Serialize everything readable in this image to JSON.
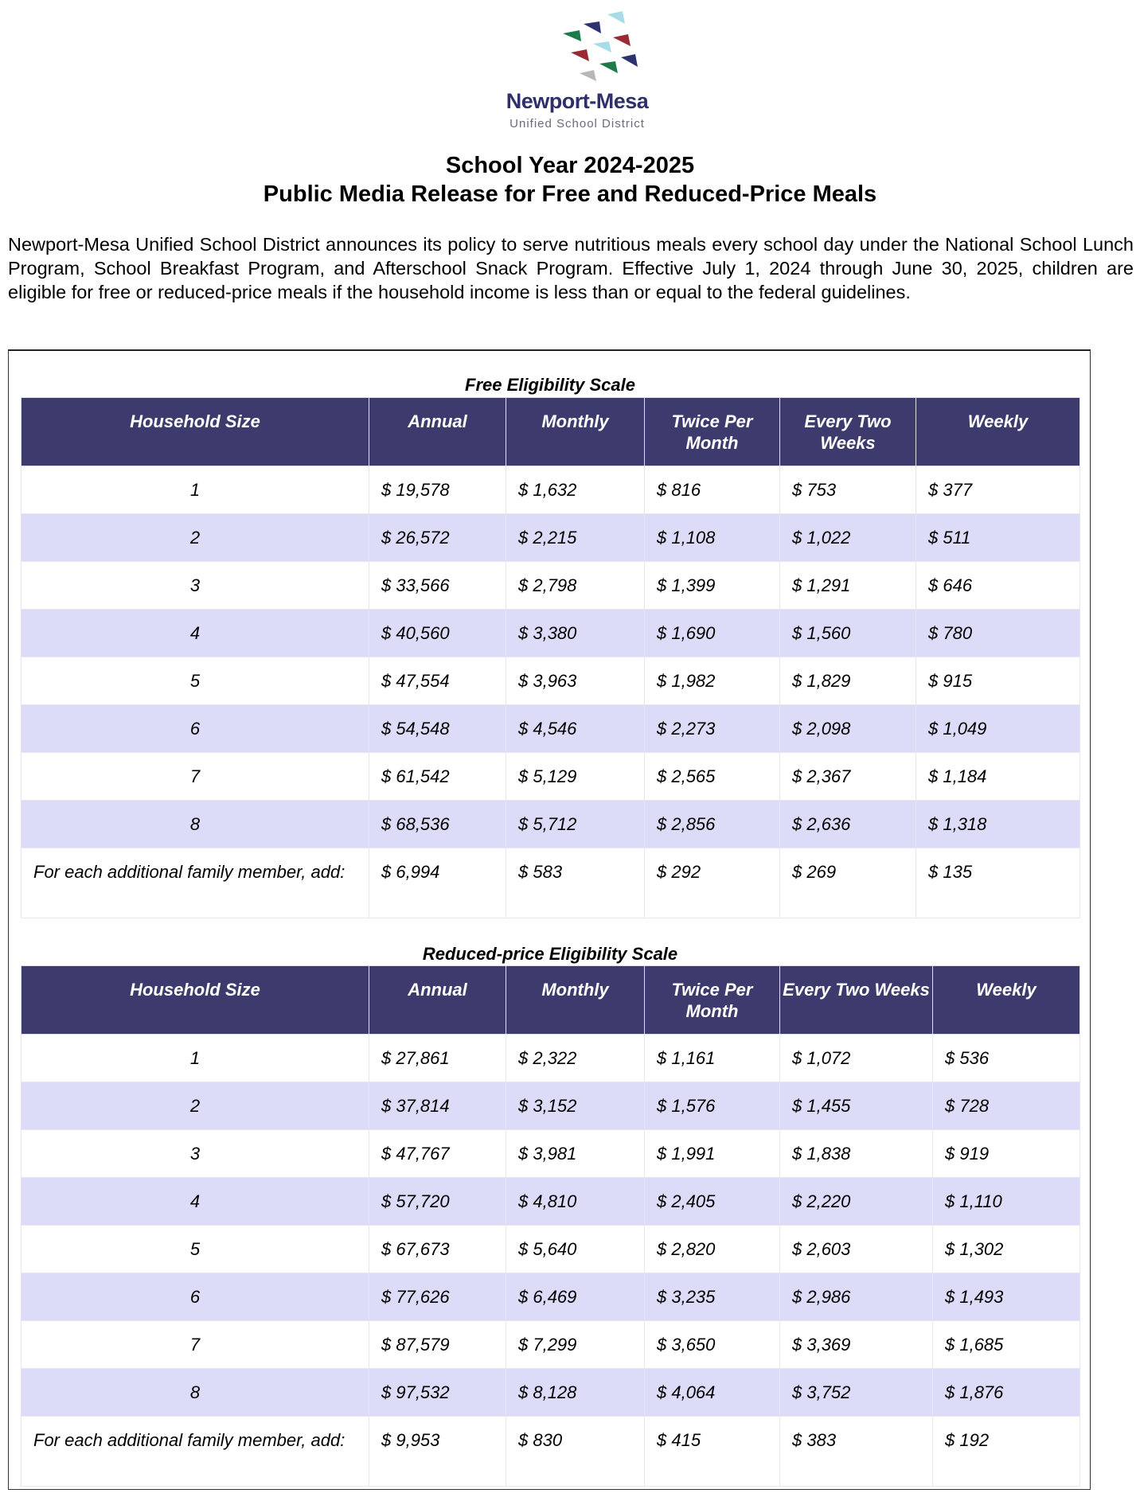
{
  "logo": {
    "name": "Newport-Mesa",
    "subtitle": "Unified School District"
  },
  "title": {
    "line1": "School Year 2024-2025",
    "line2": "Public Media Release for Free and Reduced-Price Meals"
  },
  "intro": "Newport-Mesa Unified School District announces its policy to serve nutritious meals every school day under the National School Lunch Program, School Breakfast Program, and Afterschool Snack Program. Effective July 1, 2024 through June 30, 2025, children are eligible for free or reduced-price meals if the household income is less than or equal to the federal guidelines.",
  "colors": {
    "header": "#3d3b6e",
    "band": "#dcdcf8"
  },
  "columns": [
    "Household Size",
    "Annual",
    "Monthly",
    "Twice Per Month",
    "Every Two Weeks",
    "Weekly"
  ],
  "free": {
    "caption": "Free Eligibility Scale",
    "rows": [
      [
        "1",
        "$ 19,578",
        "$ 1,632",
        "$ 816",
        "$ 753",
        "$ 377"
      ],
      [
        "2",
        "$ 26,572",
        "$ 2,215",
        "$ 1,108",
        "$ 1,022",
        "$ 511"
      ],
      [
        "3",
        "$ 33,566",
        "$ 2,798",
        "$ 1,399",
        "$ 1,291",
        "$ 646"
      ],
      [
        "4",
        "$ 40,560",
        "$ 3,380",
        "$ 1,690",
        "$ 1,560",
        "$ 780"
      ],
      [
        "5",
        "$ 47,554",
        "$ 3,963",
        "$ 1,982",
        "$ 1,829",
        "$ 915"
      ],
      [
        "6",
        "$ 54,548",
        "$ 4,546",
        "$ 2,273",
        "$ 2,098",
        "$ 1,049"
      ],
      [
        "7",
        "$ 61,542",
        "$ 5,129",
        "$ 2,565",
        "$ 2,367",
        "$ 1,184"
      ],
      [
        "8",
        "$ 68,536",
        "$ 5,712",
        "$ 2,856",
        "$ 2,636",
        "$ 1,318"
      ],
      [
        "For each additional family member, add:",
        "$ 6,994",
        "$ 583",
        "$ 292",
        "$ 269",
        "$ 135"
      ]
    ]
  },
  "reduced": {
    "caption": "Reduced-price Eligibility Scale",
    "rows": [
      [
        "1",
        "$ 27,861",
        "$ 2,322",
        "$ 1,161",
        "$ 1,072",
        "$ 536"
      ],
      [
        "2",
        "$ 37,814",
        "$ 3,152",
        "$ 1,576",
        "$ 1,455",
        "$ 728"
      ],
      [
        "3",
        "$ 47,767",
        "$ 3,981",
        "$ 1,991",
        "$ 1,838",
        "$ 919"
      ],
      [
        "4",
        "$ 57,720",
        "$ 4,810",
        "$ 2,405",
        "$ 2,220",
        "$ 1,110"
      ],
      [
        "5",
        "$ 67,673",
        "$ 5,640",
        "$ 2,820",
        "$ 2,603",
        "$ 1,302"
      ],
      [
        "6",
        "$ 77,626",
        "$ 6,469",
        "$ 3,235",
        "$ 2,986",
        "$ 1,493"
      ],
      [
        "7",
        "$ 87,579",
        "$ 7,299",
        "$ 3,650",
        "$ 3,369",
        "$ 1,685"
      ],
      [
        "8",
        "$ 97,532",
        "$ 8,128",
        "$ 4,064",
        "$ 3,752",
        "$ 1,876"
      ],
      [
        "For each additional family member, add:",
        "$ 9,953",
        "$ 830",
        "$ 415",
        "$ 383",
        "$ 192"
      ]
    ]
  }
}
